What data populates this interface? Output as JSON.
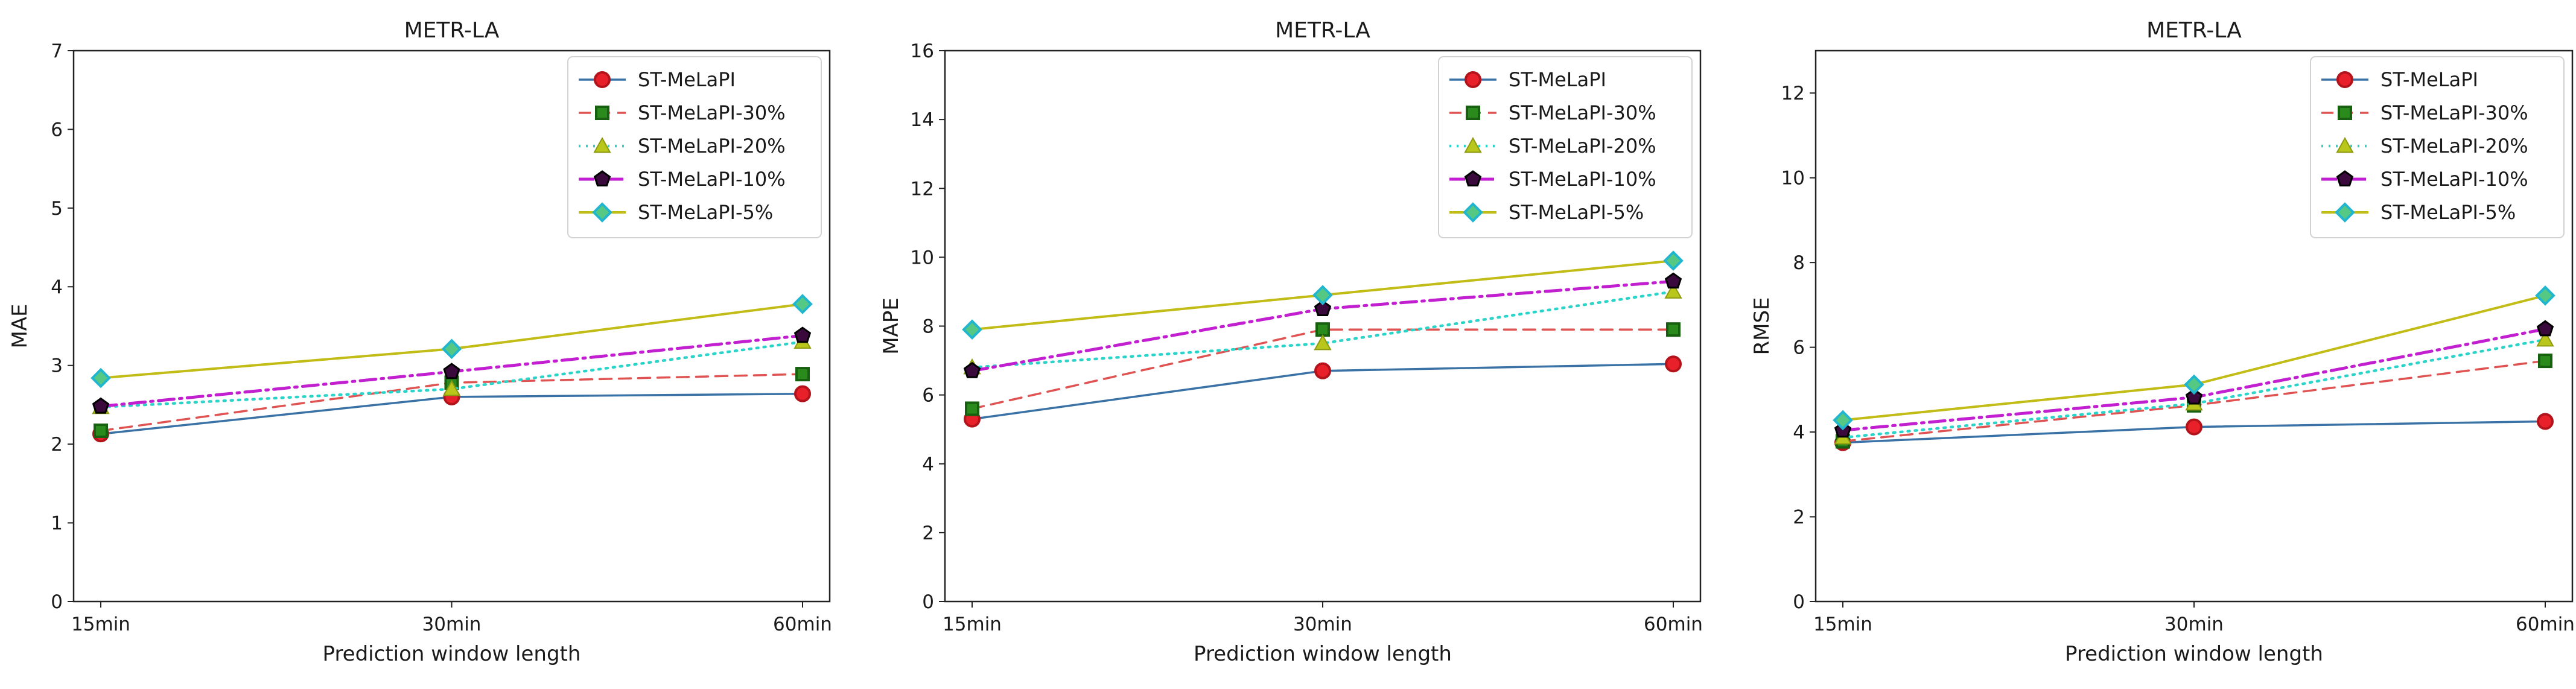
{
  "colors": {
    "ST-MeLaPI": "#3a72a6",
    "ST-MeLaPI-30%": "#e05353",
    "ST-MeLaPI-20%": "#2bd4c9",
    "ST-MeLaPI-10%": "#c21fd0",
    "ST-MeLaPI-5%": "#c2bc16"
  },
  "chart_data": [
    {
      "type": "line",
      "title": "METR-LA",
      "xlabel": "Prediction window length",
      "ylabel": "MAE",
      "categories": [
        "15min",
        "30min",
        "60min"
      ],
      "ylim": [
        0,
        7
      ],
      "yticks": [
        "0",
        "1",
        "2",
        "3",
        "4",
        "5",
        "6",
        "7"
      ],
      "legend_position": "top-right",
      "series": [
        {
          "name": "ST-MeLaPI",
          "values": [
            2.13,
            2.6,
            2.64
          ]
        },
        {
          "name": "ST-MeLaPI-30%",
          "values": [
            2.17,
            2.78,
            2.89
          ]
        },
        {
          "name": "ST-MeLaPI-20%",
          "values": [
            2.47,
            2.7,
            3.3
          ]
        },
        {
          "name": "ST-MeLaPI-10%",
          "values": [
            2.48,
            2.92,
            3.38
          ]
        },
        {
          "name": "ST-MeLaPI-5%",
          "values": [
            2.84,
            3.21,
            3.78
          ]
        }
      ]
    },
    {
      "type": "line",
      "title": "METR-LA",
      "xlabel": "Prediction window length",
      "ylabel": "MAPE",
      "categories": [
        "15min",
        "30min",
        "60min"
      ],
      "ylim": [
        0,
        16
      ],
      "yticks": [
        "0",
        "2",
        "4",
        "6",
        "8",
        "10",
        "12",
        "14",
        "16"
      ],
      "legend_position": "top-right",
      "series": [
        {
          "name": "ST-MeLaPI",
          "values": [
            5.3,
            6.7,
            6.9
          ]
        },
        {
          "name": "ST-MeLaPI-30%",
          "values": [
            5.6,
            7.9,
            7.9
          ]
        },
        {
          "name": "ST-MeLaPI-20%",
          "values": [
            6.8,
            7.5,
            9.0
          ]
        },
        {
          "name": "ST-MeLaPI-10%",
          "values": [
            6.7,
            8.5,
            9.3
          ]
        },
        {
          "name": "ST-MeLaPI-5%",
          "values": [
            7.9,
            8.9,
            9.9
          ]
        }
      ]
    },
    {
      "type": "line",
      "title": "METR-LA",
      "xlabel": "Prediction window length",
      "ylabel": "RMSE",
      "categories": [
        "15min",
        "30min",
        "60min"
      ],
      "ylim": [
        0,
        13
      ],
      "yticks": [
        "0",
        "2",
        "4",
        "6",
        "8",
        "10",
        "12"
      ],
      "legend_position": "top-right",
      "series": [
        {
          "name": "ST-MeLaPI",
          "values": [
            3.75,
            4.12,
            4.25
          ]
        },
        {
          "name": "ST-MeLaPI-30%",
          "values": [
            3.78,
            4.63,
            5.68
          ]
        },
        {
          "name": "ST-MeLaPI-20%",
          "values": [
            3.87,
            4.67,
            6.18
          ]
        },
        {
          "name": "ST-MeLaPI-10%",
          "values": [
            4.04,
            4.82,
            6.43
          ]
        },
        {
          "name": "ST-MeLaPI-5%",
          "values": [
            4.28,
            5.12,
            7.22
          ]
        }
      ]
    }
  ]
}
